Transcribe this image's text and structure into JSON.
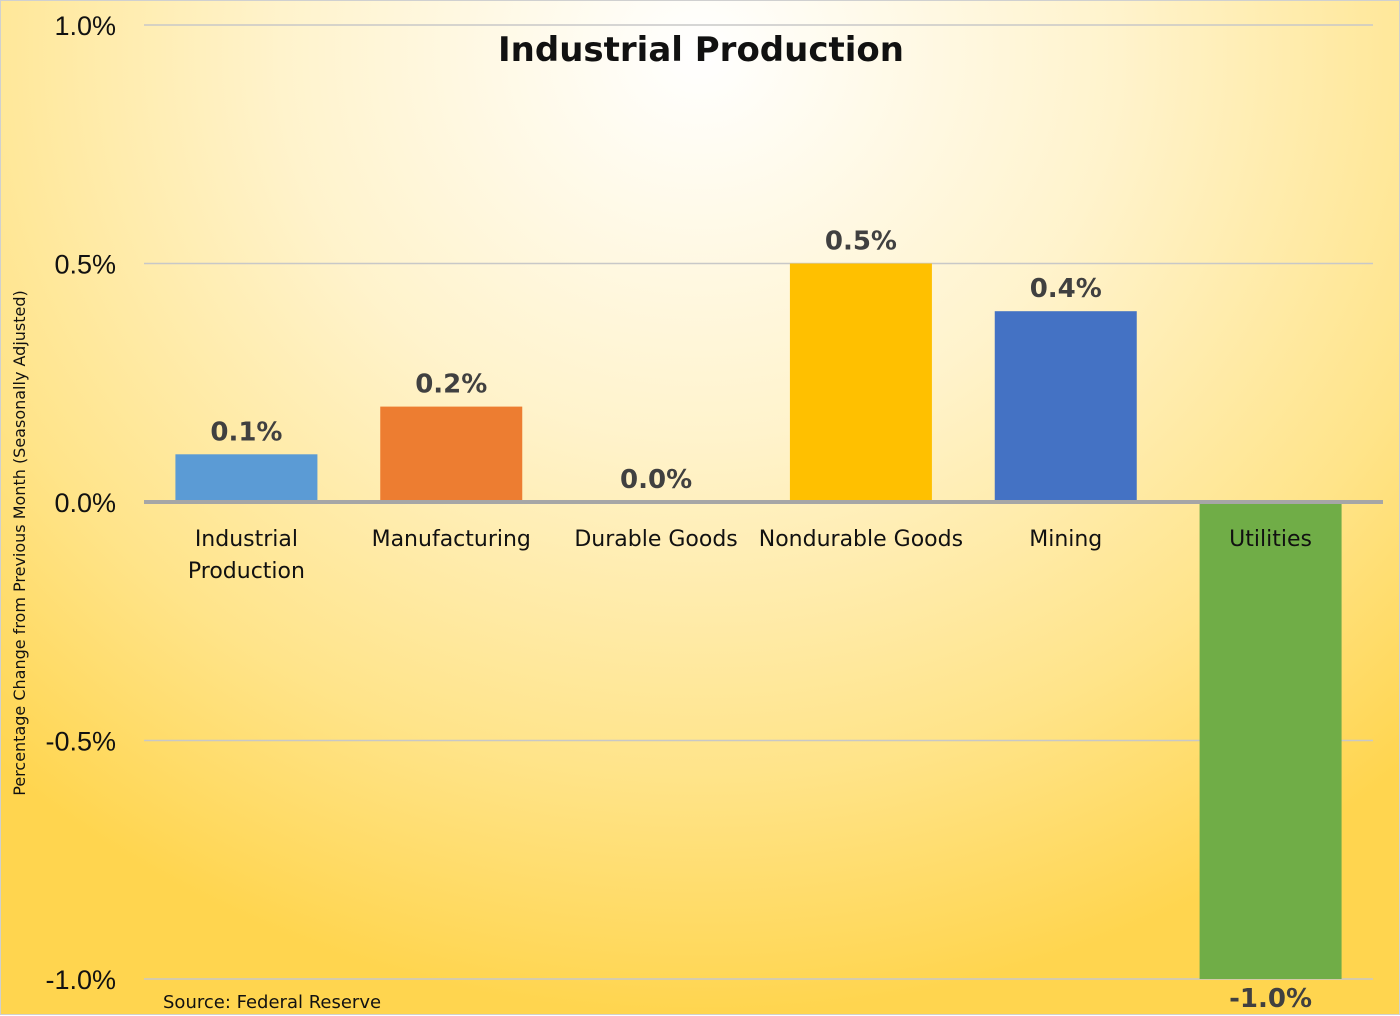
{
  "chart_data": {
    "type": "bar",
    "title": "Industrial Production",
    "ylabel": "Percentage Change from Previous Month (Seasonally Adjusted)",
    "xlabel": "",
    "source": "Source: Federal Reserve",
    "ylim": [
      -1.0,
      1.0
    ],
    "yticks": [
      1.0,
      0.5,
      0.0,
      -0.5,
      -1.0
    ],
    "ytick_labels": [
      "1.0%",
      "0.5%",
      "0.0%",
      "-0.5%",
      "-1.0%"
    ],
    "grid": true,
    "categories": [
      [
        "Industrial",
        "Production"
      ],
      [
        "Manufacturing"
      ],
      [
        "Durable Goods"
      ],
      [
        "Nondurable Goods"
      ],
      [
        "Mining"
      ],
      [
        "Utilities"
      ]
    ],
    "values": [
      0.1,
      0.2,
      0.0,
      0.5,
      0.4,
      -1.0
    ],
    "data_labels": [
      "0.1%",
      "0.2%",
      "0.0%",
      "0.5%",
      "0.4%",
      "-1.0%"
    ],
    "colors": [
      "#5b9bd5",
      "#ed7d31",
      "#a5a5a5",
      "#ffc000",
      "#4472c4",
      "#70ad47"
    ]
  }
}
